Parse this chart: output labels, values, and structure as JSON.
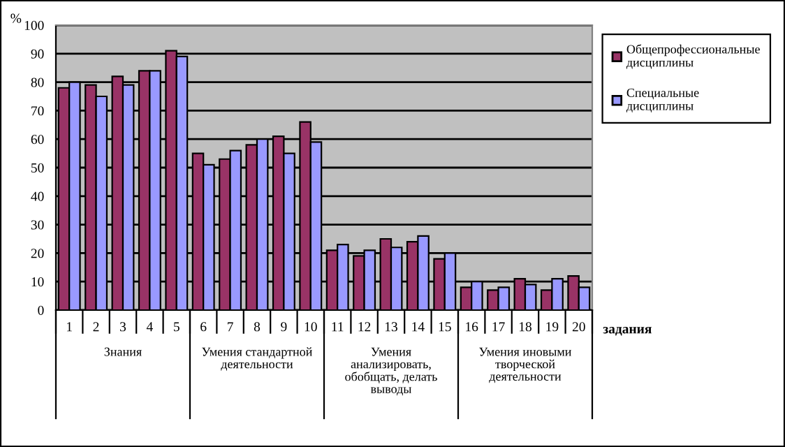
{
  "chart_data": {
    "type": "bar",
    "categories": [
      "1",
      "2",
      "3",
      "4",
      "5",
      "6",
      "7",
      "8",
      "9",
      "10",
      "11",
      "12",
      "13",
      "14",
      "15",
      "16",
      "17",
      "18",
      "19",
      "20"
    ],
    "series": [
      {
        "name": "Общепрофессиональные дисциплины",
        "color": "#993366",
        "values": [
          78,
          79,
          82,
          84,
          91,
          55,
          53,
          58,
          61,
          66,
          21,
          19,
          25,
          24,
          18,
          8,
          7,
          11,
          7,
          12
        ]
      },
      {
        "name": "Специальные дисциплины",
        "color": "#9999ff",
        "values": [
          80,
          75,
          79,
          84,
          89,
          51,
          56,
          60,
          55,
          59,
          23,
          21,
          22,
          26,
          20,
          10,
          8,
          9,
          11,
          8
        ]
      }
    ],
    "ylabel": "%",
    "xlabel": "задания",
    "ylim": [
      0,
      100
    ],
    "yticks": [
      0,
      10,
      20,
      30,
      40,
      50,
      60,
      70,
      80,
      90,
      100
    ],
    "grid": "y",
    "legend": "top right",
    "annotations": [
      "Знания",
      "Умения стандартной деятельности",
      "Умения анализировать, обобщать, делать выводы",
      "Умения иновыми творческой деятельности"
    ]
  }
}
